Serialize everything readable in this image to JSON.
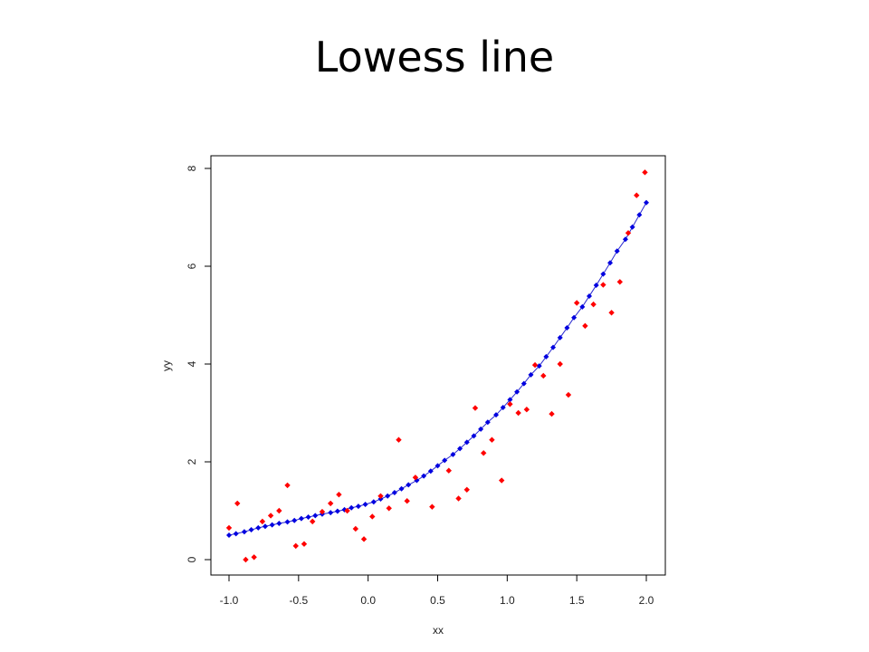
{
  "slide": {
    "title": "Lowess line"
  },
  "colors": {
    "points": "#ff0000",
    "lowess_points": "#0000e0",
    "lowess_line": "#2a2ad0",
    "frame": "#000000"
  },
  "chart_data": {
    "type": "scatter",
    "title": "Lowess line",
    "xlabel": "xx",
    "ylabel": "yy",
    "xlim": [
      -1.0,
      2.0
    ],
    "ylim": [
      0,
      8
    ],
    "xticks": [
      "-1.0",
      "-0.5",
      "0.0",
      "0.5",
      "1.0",
      "1.5",
      "2.0"
    ],
    "xtick_values": [
      -1.0,
      -0.5,
      0.0,
      0.5,
      1.0,
      1.5,
      2.0
    ],
    "yticks": [
      "0",
      "2",
      "4",
      "6",
      "8"
    ],
    "ytick_values": [
      0,
      2,
      4,
      6,
      8
    ],
    "grid": false,
    "series": [
      {
        "kind": "points",
        "x": [
          -1.0,
          -0.94,
          -0.88,
          -0.82,
          -0.76,
          -0.7,
          -0.64,
          -0.58,
          -0.52,
          -0.46,
          -0.4,
          -0.33,
          -0.27,
          -0.21,
          -0.15,
          -0.09,
          -0.03,
          0.03,
          0.09,
          0.15,
          0.22,
          0.28,
          0.34,
          0.46,
          0.58,
          0.65,
          0.71,
          0.77,
          0.83,
          0.89,
          0.96,
          1.02,
          1.08,
          1.14,
          1.2,
          1.26,
          1.32,
          1.38,
          1.44,
          1.5,
          1.56,
          1.62,
          1.69,
          1.75,
          1.81,
          1.87,
          1.93,
          1.99
        ],
        "y": [
          0.65,
          1.15,
          0.0,
          0.05,
          0.78,
          0.9,
          1.0,
          1.52,
          0.28,
          0.32,
          0.78,
          0.98,
          1.15,
          1.33,
          1.0,
          0.63,
          0.42,
          0.88,
          1.3,
          1.05,
          2.45,
          1.2,
          1.68,
          1.08,
          1.82,
          1.25,
          1.43,
          3.1,
          2.18,
          2.45,
          1.62,
          3.18,
          3.0,
          3.07,
          3.98,
          3.76,
          2.98,
          4.0,
          3.37,
          5.25,
          4.78,
          5.22,
          5.62,
          5.05,
          5.68,
          6.68,
          7.45,
          7.92
        ]
      },
      {
        "kind": "lowess",
        "x": [
          -1.0,
          -0.95,
          -0.89,
          -0.84,
          -0.79,
          -0.74,
          -0.69,
          -0.64,
          -0.58,
          -0.53,
          -0.48,
          -0.43,
          -0.38,
          -0.33,
          -0.27,
          -0.22,
          -0.17,
          -0.12,
          -0.07,
          -0.02,
          0.04,
          0.09,
          0.14,
          0.19,
          0.24,
          0.29,
          0.35,
          0.4,
          0.45,
          0.5,
          0.55,
          0.61,
          0.66,
          0.71,
          0.76,
          0.81,
          0.86,
          0.92,
          0.97,
          1.02,
          1.07,
          1.12,
          1.17,
          1.23,
          1.28,
          1.33,
          1.38,
          1.43,
          1.48,
          1.54,
          1.59,
          1.64,
          1.69,
          1.74,
          1.79,
          1.85,
          1.9,
          1.95,
          2.0
        ],
        "y": [
          0.5,
          0.53,
          0.57,
          0.61,
          0.65,
          0.68,
          0.71,
          0.74,
          0.77,
          0.8,
          0.84,
          0.87,
          0.9,
          0.93,
          0.96,
          0.99,
          1.02,
          1.06,
          1.09,
          1.13,
          1.18,
          1.24,
          1.3,
          1.37,
          1.45,
          1.53,
          1.62,
          1.71,
          1.81,
          1.92,
          2.03,
          2.15,
          2.27,
          2.4,
          2.53,
          2.67,
          2.81,
          2.96,
          3.11,
          3.27,
          3.43,
          3.6,
          3.78,
          3.96,
          4.15,
          4.34,
          4.54,
          4.74,
          4.95,
          5.17,
          5.39,
          5.61,
          5.84,
          6.07,
          6.31,
          6.55,
          6.8,
          7.05,
          7.3
        ]
      }
    ]
  }
}
